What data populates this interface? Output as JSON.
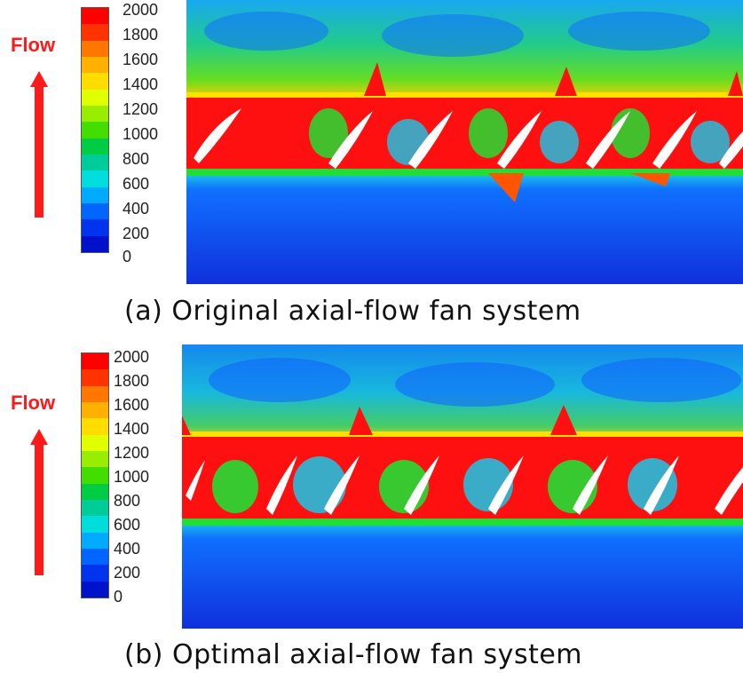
{
  "legend": {
    "ticks": [
      "2000",
      "1800",
      "1600",
      "1400",
      "1200",
      "1000",
      "800",
      "600",
      "400",
      "200",
      "0"
    ],
    "colors": [
      "#ff0000",
      "#ff3300",
      "#ff7700",
      "#ffb000",
      "#ffdd00",
      "#e0ff00",
      "#99ee00",
      "#44dd00",
      "#00cc44",
      "#00cc99",
      "#00dddd",
      "#00aaff",
      "#0066ff",
      "#0033ee",
      "#0011cc"
    ]
  },
  "panels": [
    {
      "flow_label": "Flow",
      "caption": "(a) Original axial-flow fan system"
    },
    {
      "flow_label": "Flow",
      "caption": "(b) Optimal axial-flow fan system"
    }
  ],
  "colors": {
    "arrow": "#ff1a1a",
    "hot": "#ff1010",
    "warm": "#ffe000",
    "mid": "#22dd33",
    "cool": "#18c8e8",
    "cold": "#1040ee",
    "blade": "#ffffff"
  }
}
